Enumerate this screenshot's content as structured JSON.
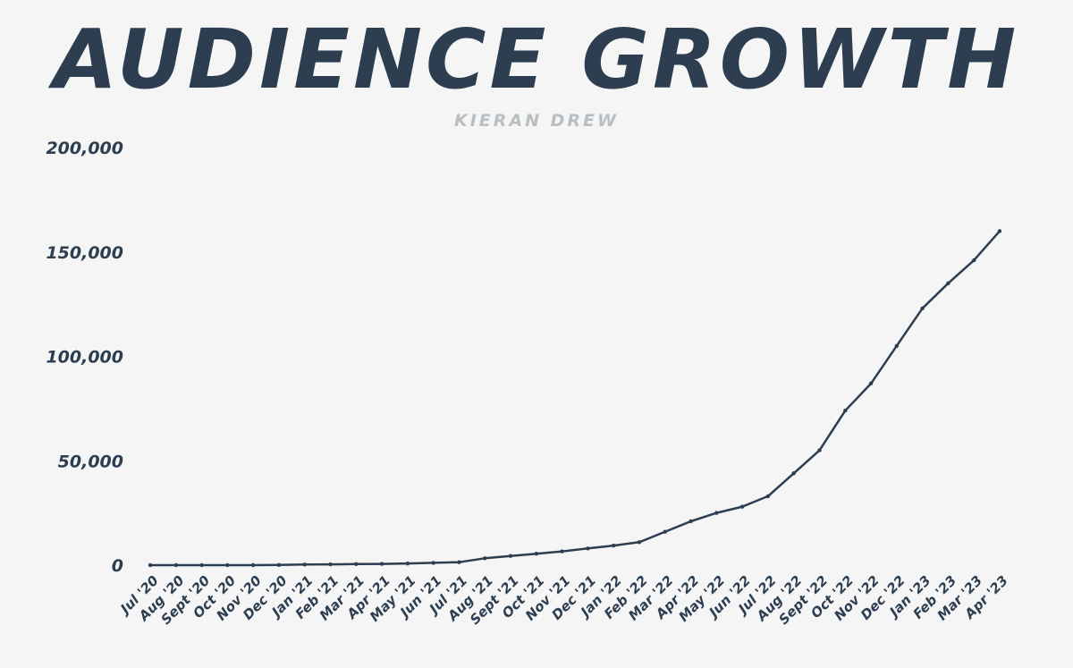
{
  "chart_data": {
    "type": "line",
    "title": "AUDIENCE GROWTH",
    "subtitle": "KIERAN DREW",
    "xlabel": "",
    "ylabel": "",
    "ylim": [
      0,
      200000
    ],
    "yticks": [
      {
        "value": 200000,
        "label": "200,000"
      },
      {
        "value": 150000,
        "label": "150,000"
      },
      {
        "value": 100000,
        "label": "100,000"
      },
      {
        "value": 50000,
        "label": "50,000"
      },
      {
        "value": 0,
        "label": "0"
      }
    ],
    "grid": false,
    "line_color": "#2c3e50",
    "categories": [
      "Jul '20",
      "Aug '20",
      "Sept '20",
      "Oct '20",
      "Nov '20",
      "Dec '20",
      "Jan '21",
      "Feb '21",
      "Mar '21",
      "Apr '21",
      "May '21",
      "Jun '21",
      "Jul '21",
      "Aug '21",
      "Sept '21",
      "Oct '21",
      "Nov '21",
      "Dec '21",
      "Jan '22",
      "Feb '22",
      "Mar '22",
      "Apr '22",
      "May '22",
      "Jun '22",
      "Jul '22",
      "Aug '22",
      "Sept '22",
      "Oct '22",
      "Nov '22",
      "Dec '22",
      "Jan '23",
      "Feb '23",
      "Mar '23",
      "Apr '23"
    ],
    "values": [
      0,
      0,
      0,
      0,
      0,
      100,
      300,
      400,
      500,
      600,
      800,
      1100,
      1400,
      3300,
      4400,
      5500,
      6600,
      8000,
      9400,
      11000,
      16000,
      21000,
      25000,
      28000,
      33000,
      44000,
      55000,
      74000,
      87000,
      105000,
      123000,
      135000,
      146000,
      160000
    ]
  }
}
